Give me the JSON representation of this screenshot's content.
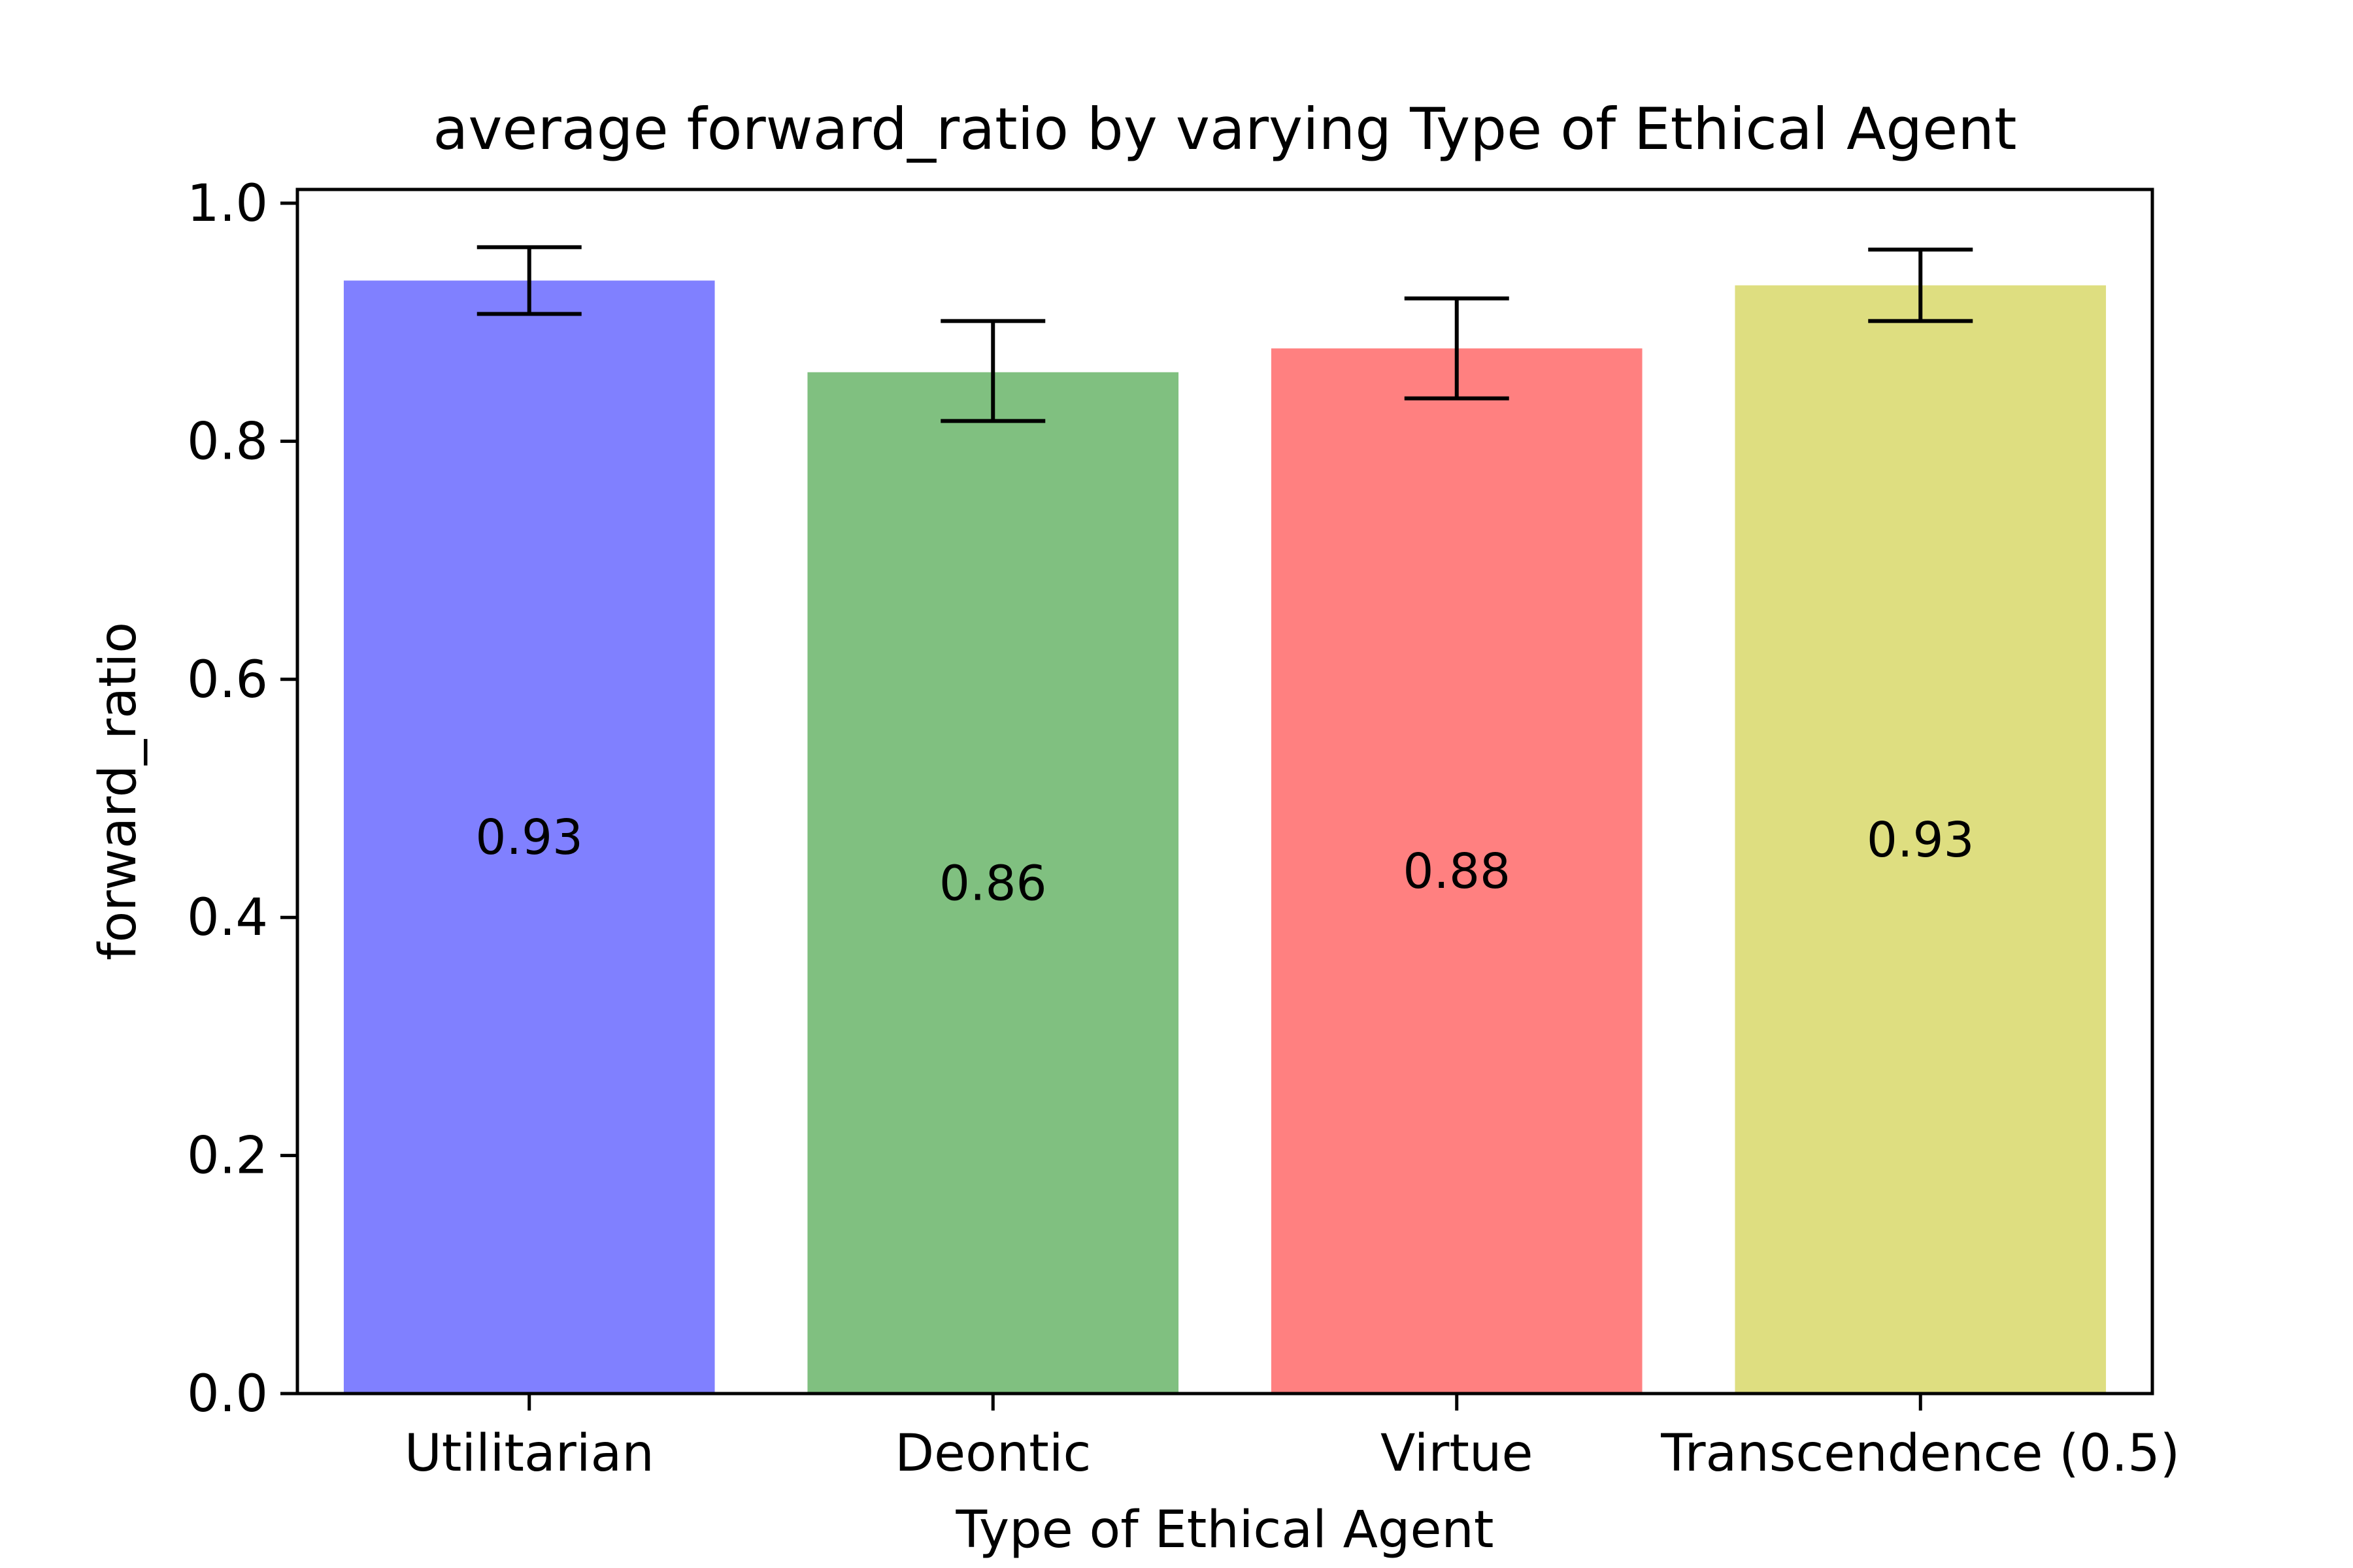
{
  "chart_data": {
    "type": "bar",
    "title": "average forward_ratio by varying Type of Ethical Agent",
    "xlabel": "Type of Ethical Agent",
    "ylabel": "forward_ratio",
    "ylim": [
      0,
      1.0
    ],
    "yticks": [
      0.0,
      0.2,
      0.4,
      0.6,
      0.8,
      1.0
    ],
    "ytick_labels": [
      "0.0",
      "0.2",
      "0.4",
      "0.6",
      "0.8",
      "1.0"
    ],
    "categories": [
      "Utilitarian",
      "Deontic",
      "Virtue",
      "Transcendence (0.5)"
    ],
    "values": [
      0.935,
      0.858,
      0.878,
      0.931
    ],
    "error_low": [
      0.907,
      0.817,
      0.836,
      0.901
    ],
    "error_high": [
      0.963,
      0.901,
      0.92,
      0.961
    ],
    "value_labels": [
      "0.93",
      "0.86",
      "0.88",
      "0.93"
    ],
    "colors": [
      "#8080ff",
      "#80c080",
      "#ff8080",
      "#dede80"
    ],
    "grid": false,
    "legend": "none"
  }
}
